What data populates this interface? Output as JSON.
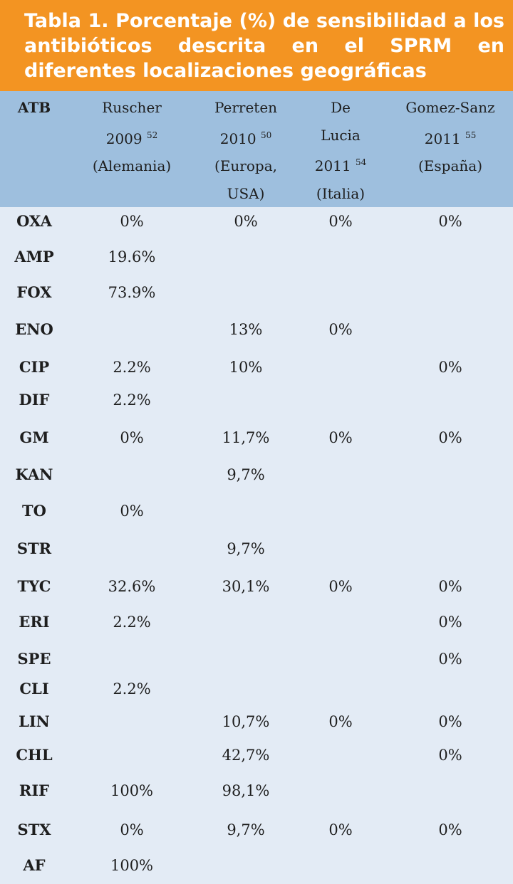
{
  "title": "Tabla 1. Porcentaje (%) de sensibilidad a los antibióticos descrita en el SPRM en diferentes localizaciones geográficas",
  "columns": [
    {
      "lines": [
        "ATB"
      ],
      "sup": ""
    },
    {
      "lines": [
        "Ruscher",
        "2009",
        "(Alemania)"
      ],
      "sup": "52",
      "sup_line": 1
    },
    {
      "lines": [
        "Perreten",
        "2010",
        "(Europa,",
        "USA)"
      ],
      "sup": "50",
      "sup_line": 1
    },
    {
      "lines": [
        "De",
        "Lucia",
        "2011",
        "(Italia)"
      ],
      "sup": "54",
      "sup_line": 2
    },
    {
      "lines": [
        "Gomez-Sanz",
        "2011",
        "(España)"
      ],
      "sup": "55",
      "sup_line": 1
    }
  ],
  "rows": [
    {
      "atb": "OXA",
      "values": [
        "0%",
        "0%",
        "0%",
        "0%"
      ]
    },
    {
      "atb": "AMP",
      "values": [
        "19.6%",
        "",
        "",
        ""
      ]
    },
    {
      "atb": "FOX",
      "values": [
        "73.9%",
        "",
        "",
        ""
      ]
    },
    {
      "atb": "ENO",
      "values": [
        "",
        "13%",
        "0%",
        ""
      ]
    },
    {
      "atb": "CIP",
      "values": [
        "2.2%",
        "10%",
        "",
        "0%"
      ]
    },
    {
      "atb": "DIF",
      "values": [
        "2.2%",
        "",
        "",
        ""
      ]
    },
    {
      "atb": "GM",
      "values": [
        "0%",
        "11,7%",
        "0%",
        "0%"
      ]
    },
    {
      "atb": "KAN",
      "values": [
        "",
        "9,7%",
        "",
        ""
      ]
    },
    {
      "atb": "TO",
      "values": [
        "0%",
        "",
        "",
        ""
      ]
    },
    {
      "atb": "STR",
      "values": [
        "",
        "9,7%",
        "",
        ""
      ]
    },
    {
      "atb": "TYC",
      "values": [
        "32.6%",
        "30,1%",
        "0%",
        "0%"
      ]
    },
    {
      "atb": "ERI",
      "values": [
        "2.2%",
        "",
        "",
        "0%"
      ]
    },
    {
      "atb": "SPE",
      "values": [
        "",
        "",
        "",
        "0%"
      ]
    },
    {
      "atb": "CLI",
      "values": [
        "2.2%",
        "",
        "",
        ""
      ]
    },
    {
      "atb": "LIN",
      "values": [
        "",
        "10,7%",
        "0%",
        "0%"
      ]
    },
    {
      "atb": "CHL",
      "values": [
        "",
        "42,7%",
        "",
        "0%"
      ]
    },
    {
      "atb": "RIF",
      "values": [
        "100%",
        "98,1%",
        "",
        ""
      ]
    },
    {
      "atb": "STX",
      "values": [
        "0%",
        "9,7%",
        "0%",
        "0%"
      ]
    },
    {
      "atb": "AF",
      "values": [
        "100%",
        "",
        "",
        ""
      ]
    }
  ],
  "colors": {
    "banner": "#f39422",
    "header": "#9ebfde",
    "body": "#e3ebf5",
    "text": "#1e1e1e"
  }
}
